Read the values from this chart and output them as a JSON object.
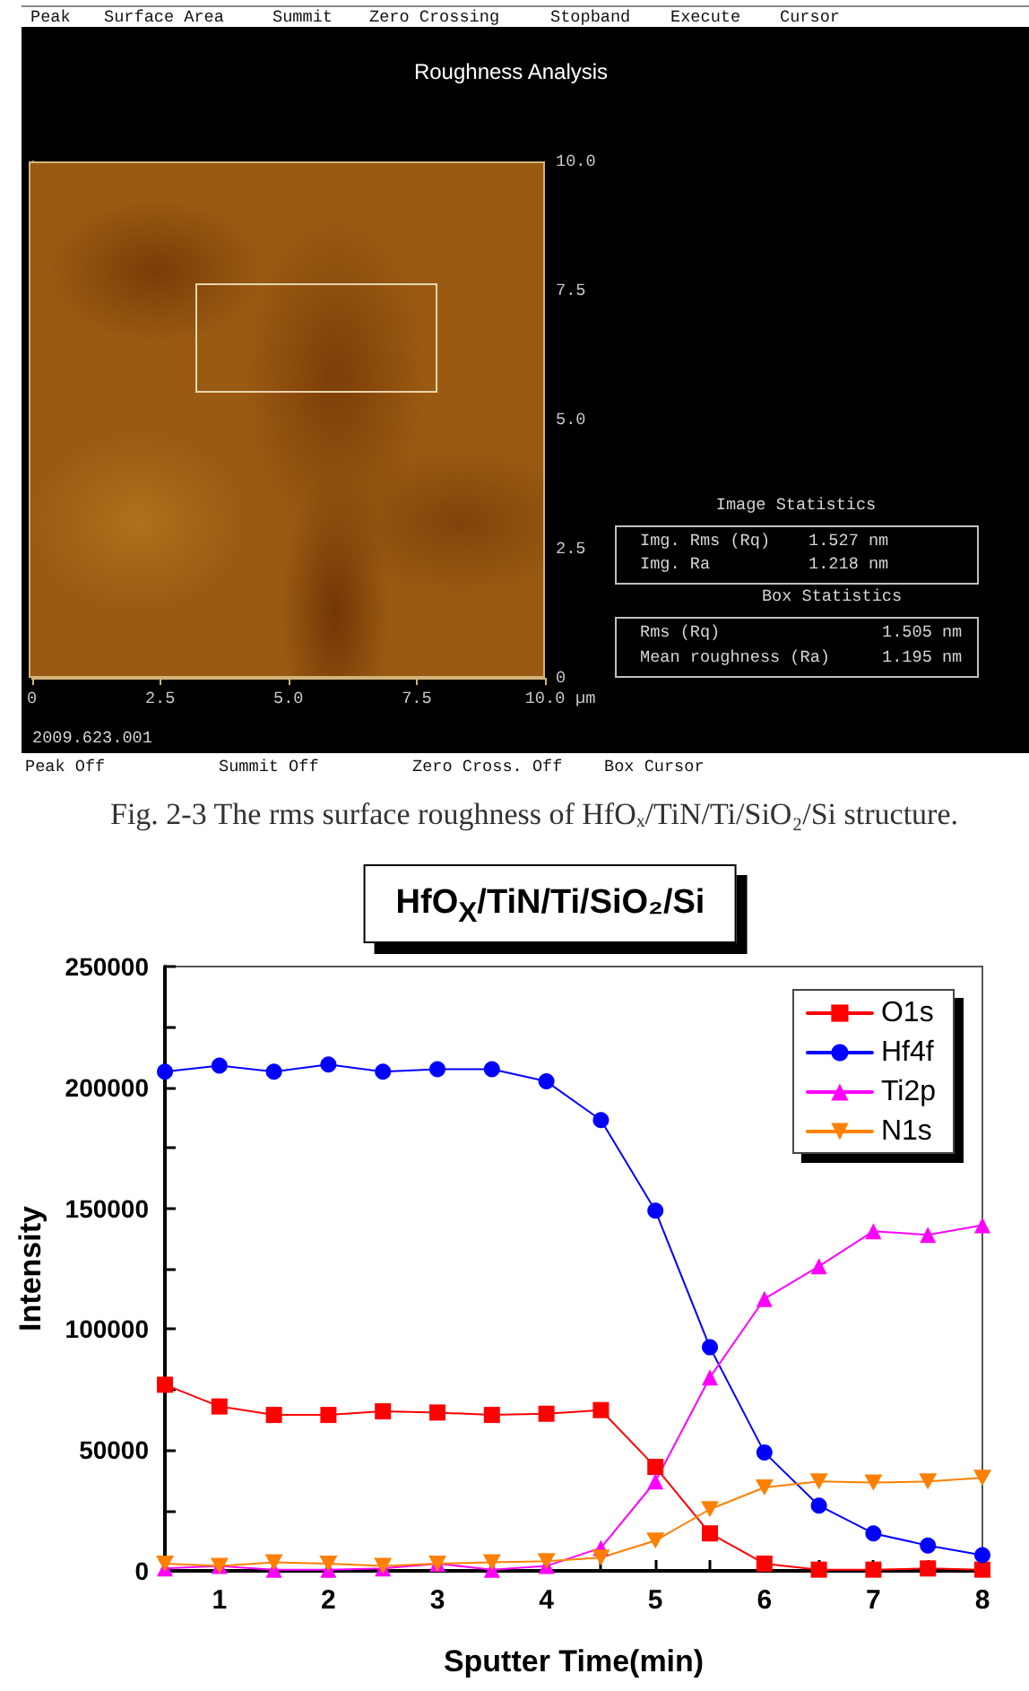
{
  "chart_data": [
    {
      "type": "scatter",
      "title": "Roughness Analysis",
      "xlabel": "µm",
      "xlim": [
        0,
        10
      ],
      "xticks": [
        0,
        2.5,
        {
          "value": 5,
          "label": "5.0"
        },
        7.5,
        {
          "value": 10,
          "label": "10.0"
        }
      ],
      "ylim": [
        0,
        10
      ],
      "yticks": [
        0,
        2.5,
        {
          "value": 5,
          "label": "5.0"
        },
        7.5,
        {
          "value": 10,
          "label": "10.0"
        }
      ],
      "annotations": [
        "Peak",
        "Surface Area",
        "Summit",
        "Zero Crossing",
        "Stopband",
        "Execute",
        "Cursor",
        "Image Statistics",
        "Img. Rms (Rq)",
        "1.527 nm",
        "Img. Ra",
        "1.218 nm",
        "Box Statistics",
        "Rms (Rq)",
        "1.505 nm",
        "Mean roughness (Ra)",
        "1.195 nm",
        "2009.623.001",
        "Peak Off",
        "Summit Off",
        "Zero Cross. Off",
        "Box Cursor",
        "Fig. 2-3 The rms surface roughness of HfOₓ/TiN/Ti/SiO₂/Si structure."
      ]
    },
    {
      "type": "line",
      "title": "HfO$_{X}$/TiN/Ti/SiO₂/Si",
      "xlabel": "Sputter Time(min)",
      "ylabel": "Intensity",
      "x": [
        0.5,
        1,
        1.5,
        2,
        2.5,
        3,
        3.5,
        4,
        4.5,
        5,
        5.5,
        6,
        6.5,
        7,
        7.5,
        8
      ],
      "xlim": [
        0.5,
        8
      ],
      "xticks": [
        1,
        {
          "value": 1.5,
          "label": null
        },
        2,
        {
          "value": 2.5,
          "label": null
        },
        3,
        {
          "value": 3.5,
          "label": null
        },
        4,
        {
          "value": 4.5,
          "label": null
        },
        5,
        {
          "value": 5.5,
          "label": null
        },
        6,
        {
          "value": 6.5,
          "label": null
        },
        7,
        {
          "value": 7.5,
          "label": null
        },
        8
      ],
      "ylim": [
        0,
        250000
      ],
      "yticks": [
        0,
        {
          "value": 25000,
          "label": null
        },
        50000,
        {
          "value": 75000,
          "label": null
        },
        100000,
        {
          "value": 125000,
          "label": null
        },
        150000,
        {
          "value": 175000,
          "label": null
        },
        200000,
        {
          "value": 225000,
          "label": null
        },
        250000
      ],
      "grid": false,
      "legend": "top right",
      "line_style": "solid",
      "series": [
        {
          "name": "O1s",
          "color": "#ff0000",
          "marker": "square",
          "values": [
            77000,
            68000,
            64500,
            64500,
            66000,
            65500,
            64500,
            65000,
            66500,
            43000,
            15500,
            3000,
            500,
            500,
            1000,
            500
          ]
        },
        {
          "name": "Hf4f",
          "color": "#0000ff",
          "marker": "circle",
          "values": [
            206500,
            209000,
            206500,
            209500,
            206500,
            207500,
            207500,
            202500,
            186500,
            149000,
            92500,
            49000,
            27000,
            15500,
            10500,
            6500
          ]
        },
        {
          "name": "Ti2p",
          "color": "#ff00ff",
          "marker": "triangle",
          "values": [
            1000,
            2000,
            500,
            500,
            1000,
            3000,
            500,
            2000,
            9500,
            37000,
            80000,
            112500,
            126000,
            140500,
            139000,
            143000
          ]
        },
        {
          "name": "N1s",
          "color": "#ff8000",
          "marker": "triangle-down",
          "values": [
            3000,
            2000,
            3500,
            3000,
            2000,
            3000,
            3500,
            4000,
            5500,
            12500,
            25500,
            34500,
            37000,
            36500,
            37000,
            38500
          ]
        }
      ]
    }
  ]
}
